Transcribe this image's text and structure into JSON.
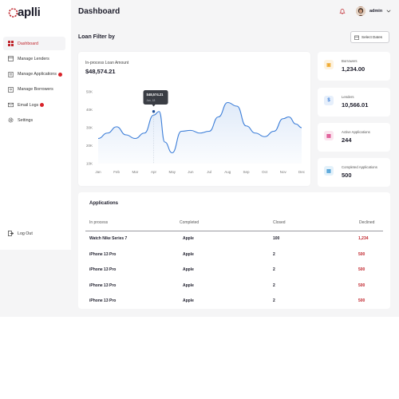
{
  "brand": {
    "name": "aplli"
  },
  "sidebar": {
    "items": [
      {
        "label": "Dashboard",
        "icon": "grid-icon",
        "active": true,
        "badge": false
      },
      {
        "label": "Manage Lenders",
        "icon": "bank-icon",
        "active": false,
        "badge": false
      },
      {
        "label": "Manage Applications",
        "icon": "document-icon",
        "active": false,
        "badge": true
      },
      {
        "label": "Manage Borrowers",
        "icon": "users-icon",
        "active": false,
        "badge": false
      },
      {
        "label": "Email Logs",
        "icon": "mail-icon",
        "active": false,
        "badge": true
      },
      {
        "label": "Settings",
        "icon": "gear-icon",
        "active": false,
        "badge": false
      }
    ],
    "logout_label": "Log Out"
  },
  "header": {
    "title": "Dashboard",
    "user": "admin"
  },
  "filter": {
    "title": "Loan Filter by",
    "select_dates_label": "Select Dates"
  },
  "chart_data": {
    "type": "line",
    "title": "In-process Loan Amount",
    "total": "$48,574.21",
    "categories": [
      "Jan",
      "Feb",
      "Mar",
      "Apr",
      "May",
      "Jun",
      "Jul",
      "Aug",
      "Sep",
      "Oct",
      "Nov",
      "Dec"
    ],
    "yticks": [
      "10K",
      "20K",
      "30K",
      "40K",
      "50K"
    ],
    "ylim": [
      10000,
      50000
    ],
    "points": [
      [
        0.0,
        24000
      ],
      [
        0.5,
        27000
      ],
      [
        1.0,
        30500
      ],
      [
        1.5,
        26000
      ],
      [
        2.0,
        24000
      ],
      [
        2.5,
        27000
      ],
      [
        3.0,
        37000
      ],
      [
        3.3,
        39000
      ],
      [
        3.6,
        22000
      ],
      [
        4.0,
        16000
      ],
      [
        4.5,
        28000
      ],
      [
        5.0,
        28500
      ],
      [
        5.5,
        27000
      ],
      [
        6.0,
        28000
      ],
      [
        6.5,
        36000
      ],
      [
        7.0,
        44000
      ],
      [
        7.5,
        42000
      ],
      [
        8.0,
        31000
      ],
      [
        8.5,
        27000
      ],
      [
        9.0,
        25000
      ],
      [
        9.5,
        28000
      ],
      [
        10.0,
        35000
      ],
      [
        10.3,
        36000
      ],
      [
        10.7,
        32000
      ],
      [
        11.0,
        30000
      ]
    ],
    "tooltip": {
      "value": "$48,574.21",
      "sub": "Jan, 18",
      "category_index": 3
    },
    "line_color": "#3b7dd8"
  },
  "stats": [
    {
      "label": "Borrowers",
      "value": "1,234.00",
      "icon": "briefcase-icon",
      "color": "#f0a92e",
      "bg": "#fdf3e1",
      "glyph": "▣"
    },
    {
      "label": "Lenders",
      "value": "10,566.01",
      "icon": "dollar-icon",
      "color": "#3b7dd8",
      "bg": "#e6effb",
      "glyph": "$"
    },
    {
      "label": "Active Applications",
      "value": "244",
      "icon": "file-icon",
      "color": "#d8327e",
      "bg": "#fbe5ef",
      "glyph": "▤"
    },
    {
      "label": "Completed Applications",
      "value": "500",
      "icon": "check-file-icon",
      "color": "#2d8fd0",
      "bg": "#e3f1fa",
      "glyph": "▤"
    }
  ],
  "applications": {
    "title": "Applications",
    "columns": [
      "In process",
      "Completed",
      "Closed",
      "Declined"
    ],
    "rows": [
      [
        "Watch Nike Series 7",
        "Apple",
        "100",
        "1,234"
      ],
      [
        "iPhone 13 Pro",
        "Apple",
        "2",
        "500"
      ],
      [
        "iPhone 13 Pro",
        "Apple",
        "2",
        "500"
      ],
      [
        "iPhone 13 Pro",
        "Apple",
        "2",
        "500"
      ],
      [
        "iPhone 13 Pro",
        "Apple",
        "2",
        "500"
      ]
    ]
  }
}
